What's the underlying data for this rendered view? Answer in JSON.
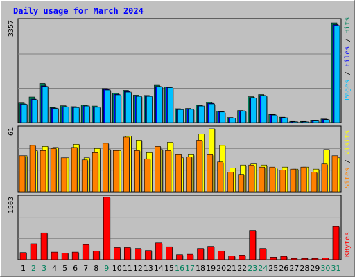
{
  "title": "Daily usage for March 2024",
  "colors": {
    "background": "#c0c0c0",
    "plot_area": "#c0c0c0",
    "title_text": "#0000ff",
    "weekday_label": "#000000",
    "weekend_label": "#00805c",
    "hits": "#00805c",
    "files": "#0000ff",
    "pages": "#00c0ff",
    "visits": "#ffff00",
    "sites": "#ff8000",
    "kbytes": "#ff0000",
    "slash": "#000000",
    "gridline": "#808080"
  },
  "chart_data": [
    {
      "type": "bar",
      "panel": "top",
      "y_max_label": "3357",
      "ylim": [
        0,
        3357
      ],
      "grid": true,
      "legend_placement": "right, vertical",
      "legend": [
        "Pages",
        "Files",
        "Hits"
      ],
      "categories": [
        "1",
        "2",
        "3",
        "4",
        "5",
        "6",
        "7",
        "8",
        "9",
        "10",
        "11",
        "12",
        "13",
        "14",
        "15",
        "16",
        "17",
        "18",
        "19",
        "20",
        "21",
        "22",
        "23",
        "24",
        "25",
        "26",
        "27",
        "28",
        "29",
        "30",
        "31"
      ],
      "series": [
        {
          "name": "Hits",
          "color": "#00805c",
          "values": [
            650,
            850,
            1300,
            500,
            560,
            530,
            590,
            550,
            1130,
            980,
            1070,
            910,
            900,
            1240,
            1180,
            460,
            470,
            580,
            680,
            380,
            170,
            400,
            860,
            930,
            270,
            180,
            40,
            40,
            70,
            120,
            3310
          ]
        },
        {
          "name": "Files",
          "color": "#0000ff",
          "values": [
            620,
            780,
            1220,
            480,
            530,
            510,
            560,
            520,
            1100,
            940,
            1030,
            880,
            880,
            1200,
            1170,
            440,
            450,
            560,
            640,
            360,
            160,
            390,
            830,
            900,
            260,
            170,
            30,
            30,
            60,
            110,
            3250
          ]
        },
        {
          "name": "Pages",
          "color": "#00c0ff",
          "values": [
            610,
            760,
            1200,
            470,
            520,
            500,
            550,
            510,
            1080,
            920,
            1010,
            870,
            870,
            1180,
            1160,
            430,
            440,
            550,
            620,
            350,
            150,
            380,
            820,
            890,
            250,
            160,
            25,
            25,
            55,
            100,
            3220
          ]
        }
      ]
    },
    {
      "type": "bar",
      "panel": "middle",
      "y_max_label": "61",
      "ylim": [
        0,
        61
      ],
      "grid": true,
      "legend_placement": "right, vertical",
      "legend": [
        "Sites",
        "Visits"
      ],
      "categories": [
        "1",
        "2",
        "3",
        "4",
        "5",
        "6",
        "7",
        "8",
        "9",
        "10",
        "11",
        "12",
        "13",
        "14",
        "15",
        "16",
        "17",
        "18",
        "19",
        "20",
        "21",
        "22",
        "23",
        "24",
        "25",
        "26",
        "27",
        "28",
        "29",
        "30",
        "31"
      ],
      "series": [
        {
          "name": "Visits",
          "color": "#ffff00",
          "values": [
            35,
            40,
            44,
            43,
            33,
            46,
            33,
            42,
            41,
            40,
            54,
            50,
            38,
            41,
            48,
            33,
            36,
            56,
            61,
            45,
            23,
            26,
            27,
            26,
            23,
            24,
            22,
            24,
            22,
            41,
            33
          ],
          "sites": [
            35,
            45,
            40,
            42,
            33,
            43,
            31,
            38,
            47,
            40,
            53,
            40,
            32,
            44,
            40,
            36,
            34,
            50,
            36,
            29,
            19,
            17,
            26,
            24,
            24,
            21,
            22,
            24,
            19,
            27,
            35
          ]
        },
        {
          "name": "Sites",
          "color": "#ff8000",
          "values": [
            35,
            45,
            40,
            42,
            33,
            43,
            31,
            38,
            47,
            40,
            53,
            40,
            32,
            44,
            40,
            36,
            34,
            50,
            36,
            29,
            19,
            17,
            26,
            24,
            24,
            21,
            22,
            24,
            19,
            27,
            35
          ]
        }
      ]
    },
    {
      "type": "bar",
      "panel": "bottom",
      "y_max_label": "1503",
      "ylim": [
        0,
        1503
      ],
      "grid": true,
      "legend_placement": "right, vertical",
      "legend": [
        "KBytes"
      ],
      "categories": [
        "1",
        "2",
        "3",
        "4",
        "5",
        "6",
        "7",
        "8",
        "9",
        "10",
        "11",
        "12",
        "13",
        "14",
        "15",
        "16",
        "17",
        "18",
        "19",
        "20",
        "21",
        "22",
        "23",
        "24",
        "25",
        "26",
        "27",
        "28",
        "29",
        "30",
        "31"
      ],
      "series": [
        {
          "name": "KBytes",
          "color": "#ff0000",
          "values": [
            170,
            380,
            640,
            180,
            160,
            180,
            360,
            210,
            1490,
            290,
            290,
            270,
            220,
            400,
            310,
            120,
            130,
            270,
            320,
            210,
            90,
            110,
            700,
            270,
            60,
            80,
            30,
            30,
            30,
            40,
            790
          ]
        }
      ]
    }
  ],
  "x_axis": {
    "labels": [
      "1",
      "2",
      "3",
      "4",
      "5",
      "6",
      "7",
      "8",
      "9",
      "10",
      "11",
      "12",
      "13",
      "14",
      "15",
      "16",
      "17",
      "18",
      "19",
      "20",
      "21",
      "22",
      "23",
      "24",
      "25",
      "26",
      "27",
      "28",
      "29",
      "30",
      "31"
    ],
    "weekend_days": [
      "2",
      "3",
      "9",
      "16",
      "17",
      "23",
      "24",
      "30",
      "31"
    ]
  }
}
